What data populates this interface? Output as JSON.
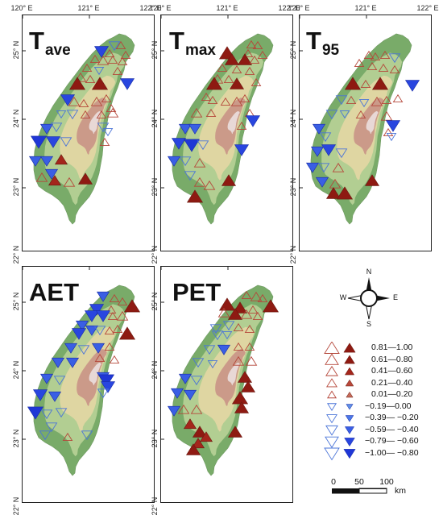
{
  "axis_labels": {
    "lon": [
      "120° E",
      "121° E",
      "122° E"
    ],
    "lat": [
      "25° N",
      "24° N",
      "23° N",
      "22° N"
    ]
  },
  "panels": [
    {
      "id": "tave",
      "title_base": "T",
      "title_sub": "ave"
    },
    {
      "id": "tmax",
      "title_base": "T",
      "title_sub": "max"
    },
    {
      "id": "t95",
      "title_base": "T",
      "title_sub": "95"
    },
    {
      "id": "aet",
      "title_base": "AET",
      "title_sub": ""
    },
    {
      "id": "pet",
      "title_base": "PET",
      "title_sub": ""
    }
  ],
  "legend": {
    "items": [
      {
        "label": "0.81—1.00",
        "direction": "up",
        "level": 5
      },
      {
        "label": "0.61—0.80",
        "direction": "up",
        "level": 4
      },
      {
        "label": "0.41—0.60",
        "direction": "up",
        "level": 3
      },
      {
        "label": "0.21—0.40",
        "direction": "up",
        "level": 2
      },
      {
        "label": "0.01—0.20",
        "direction": "up",
        "level": 1
      },
      {
        "label": "−0.19—0.00",
        "direction": "down",
        "level": 1
      },
      {
        "label": "−0.39— −0.20",
        "direction": "down",
        "level": 2
      },
      {
        "label": "−0.59— −0.40",
        "direction": "down",
        "level": 3
      },
      {
        "label": "−0.79— −0.60",
        "direction": "down",
        "level": 4
      },
      {
        "label": "−1.00— −0.80",
        "direction": "down",
        "level": 5
      }
    ]
  },
  "scale_bar": {
    "ticks": [
      "0",
      "50",
      "100"
    ],
    "unit": "km"
  },
  "compass": {
    "n": "N",
    "s": "S",
    "e": "E",
    "w": "W"
  },
  "colors": {
    "positive_fill": "#a51e12",
    "positive_stroke": "#b5473a",
    "negative_fill": "#2346e0",
    "negative_stroke": "#4a74d8",
    "lowland": "#79ab69",
    "plain": "#bcd39a",
    "upland": "#e3d7a4",
    "highland": "#c99486",
    "peak": "#efe7ea"
  }
}
